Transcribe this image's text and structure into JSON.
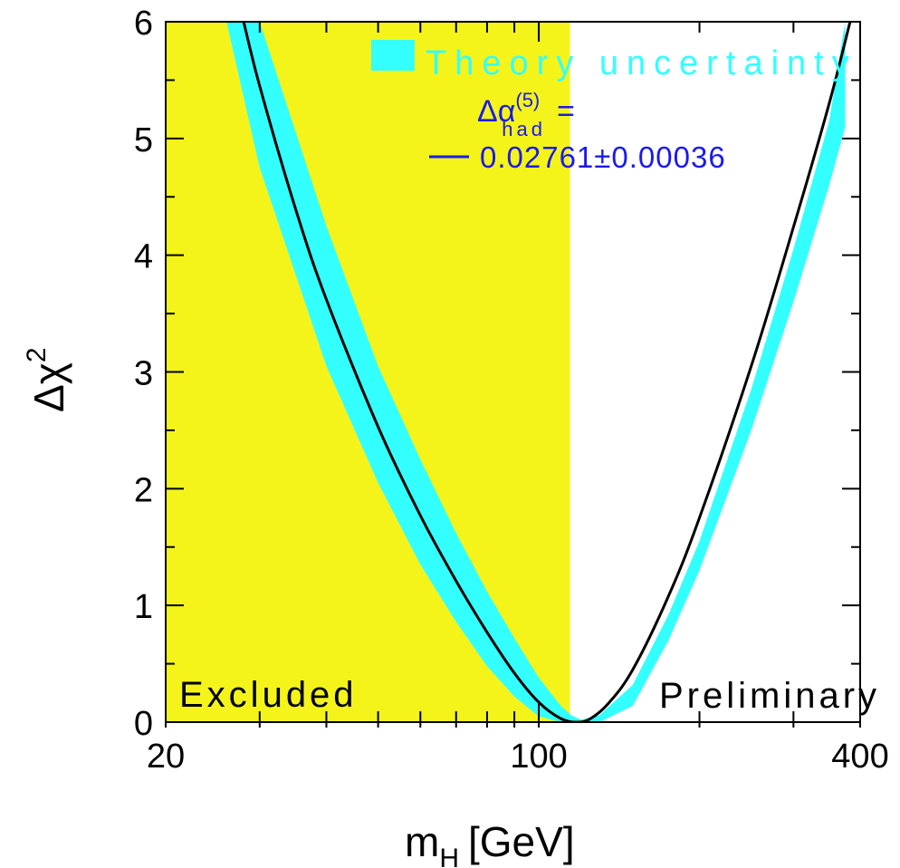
{
  "chart_data": {
    "type": "line",
    "xlabel": {
      "main": "m",
      "sub": "H",
      "unit": "[GeV]"
    },
    "ylabel": {
      "main": "Δχ",
      "sup": "2"
    },
    "xscale": "log",
    "xlim": [
      20,
      400
    ],
    "ylim": [
      0,
      6
    ],
    "x_tick_labels": [
      "20",
      "100",
      "400"
    ],
    "x_tick_values": [
      20,
      100,
      400
    ],
    "y_tick_labels": [
      "0",
      "1",
      "2",
      "3",
      "4",
      "5",
      "6"
    ],
    "y_tick_values": [
      0,
      1,
      2,
      3,
      4,
      5,
      6
    ],
    "excluded_region": {
      "label": "Excluded",
      "x_max": 114.4,
      "color": "#f4f41a"
    },
    "preliminary_label": "Preliminary",
    "legend": {
      "band_label": "Theory uncertainty",
      "band_color": "#33ffff",
      "line_label_main": "Δα",
      "line_label_sup": "(5)",
      "line_label_sub": "had",
      "line_label_eq": "=",
      "line_value": "0.02761±0.00036",
      "line_color": "#1a1aee"
    },
    "series": [
      {
        "type": "line",
        "color": "#000000",
        "x": [
          28,
          30,
          35,
          40,
          50,
          60,
          70,
          80,
          90,
          100,
          110,
          118,
          125,
          135,
          150,
          175,
          200,
          250,
          300,
          350,
          383
        ],
        "y": [
          6.0,
          5.45,
          4.4,
          3.62,
          2.53,
          1.77,
          1.21,
          0.77,
          0.42,
          0.17,
          0.03,
          0.0,
          0.03,
          0.16,
          0.45,
          1.08,
          1.75,
          3.05,
          4.24,
          5.3,
          6.0
        ]
      }
    ],
    "band": {
      "x": [
        26,
        30,
        40,
        50,
        60,
        70,
        80,
        90,
        100,
        110,
        115,
        120,
        130,
        150,
        175,
        200,
        250,
        300,
        350,
        375
      ],
      "y_low": [
        6.0,
        4.75,
        3.05,
        2.05,
        1.35,
        0.86,
        0.48,
        0.22,
        0.05,
        0.0,
        0.0,
        0.0,
        0.0,
        0.14,
        0.7,
        1.3,
        2.5,
        3.6,
        4.6,
        5.1
      ],
      "y_high": [
        6.0,
        6.0,
        4.25,
        3.05,
        2.25,
        1.62,
        1.12,
        0.72,
        0.38,
        0.14,
        0.06,
        0.02,
        0.06,
        0.32,
        0.92,
        1.55,
        2.85,
        4.05,
        5.15,
        6.0
      ]
    }
  }
}
